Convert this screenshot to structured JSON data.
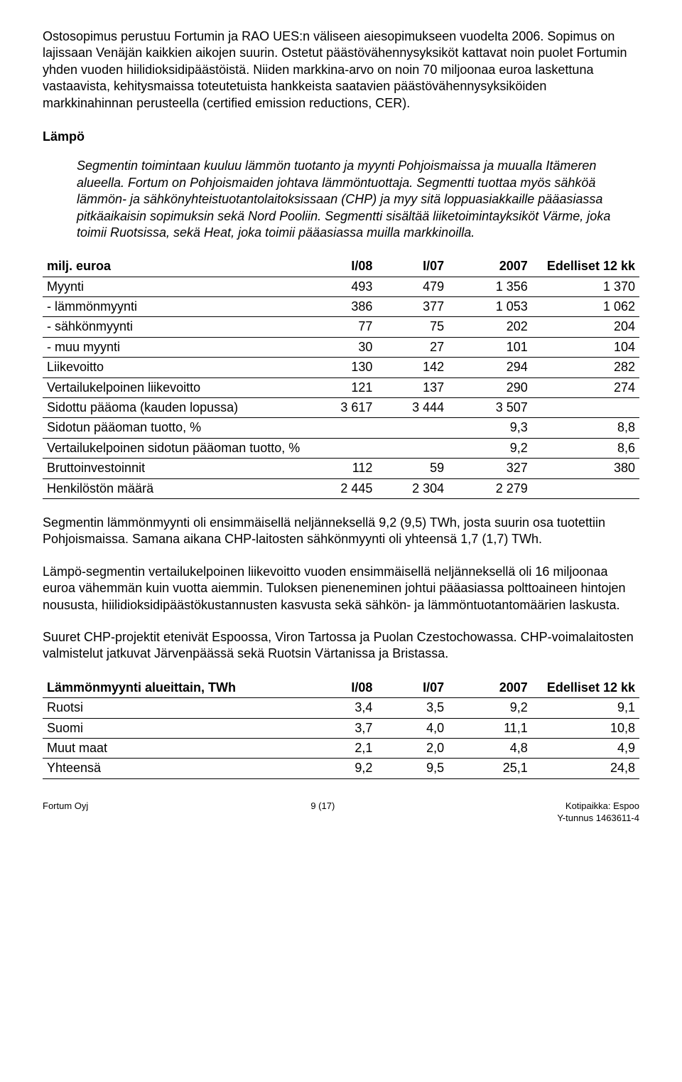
{
  "p1": "Ostosopimus perustuu Fortumin ja RAO UES:n väliseen aiesopimukseen vuodelta 2006. Sopimus on lajissaan Venäjän kaikkien aikojen suurin. Ostetut päästövähennysyksiköt kattavat noin puolet Fortumin yhden vuoden hiilidioksidipäästöistä. Niiden markkina-arvo on noin 70 miljoonaa euroa laskettuna vastaavista, kehitysmaissa toteutetuista hankkeista saatavien päästövähennysyksiköiden markkinahinnan perusteella (certified emission reductions, CER).",
  "heading_lampo": "Lämpö",
  "lampo_desc": "Segmentin toimintaan kuuluu lämmön tuotanto ja myynti Pohjoismaissa ja muualla Itämeren alueella. Fortum on Pohjoismaiden johtava lämmöntuottaja. Segmentti tuottaa myös sähköä lämmön- ja sähkönyhteistuotantolaitoksissaan (CHP) ja myy sitä loppuasiakkaille pääasiassa pitkäaikaisin sopimuksin sekä Nord Pooliin. Segmentti sisältää liiketoimintayksiköt Värme, joka toimii Ruotsissa, sekä Heat, joka toimii pääasiassa muilla markkinoilla.",
  "t1": {
    "headers": [
      "milj. euroa",
      "I/08",
      "I/07",
      "2007",
      "Edelliset 12 kk"
    ],
    "rows": [
      [
        "Myynti",
        "493",
        "479",
        "1 356",
        "1 370"
      ],
      [
        "- lämmönmyynti",
        "386",
        "377",
        "1 053",
        "1 062"
      ],
      [
        "- sähkönmyynti",
        "77",
        "75",
        "202",
        "204"
      ],
      [
        "- muu myynti",
        "30",
        "27",
        "101",
        "104"
      ],
      [
        "Liikevoitto",
        "130",
        "142",
        "294",
        "282"
      ],
      [
        "Vertailukelpoinen liikevoitto",
        "121",
        "137",
        "290",
        "274"
      ],
      [
        "Sidottu pääoma (kauden lopussa)",
        "3 617",
        "3 444",
        "3 507",
        ""
      ],
      [
        "Sidotun pääoman tuotto, %",
        "",
        "",
        "9,3",
        "8,8"
      ],
      [
        "Vertailukelpoinen sidotun pääoman tuotto, %",
        "",
        "",
        "9,2",
        "8,6"
      ],
      [
        "Bruttoinvestoinnit",
        "112",
        "59",
        "327",
        "380"
      ],
      [
        "Henkilöstön määrä",
        "2 445",
        "2 304",
        "2 279",
        ""
      ]
    ]
  },
  "p_after1": "Segmentin lämmönmyynti oli ensimmäisellä neljänneksellä 9,2 (9,5) TWh, josta suurin osa tuotettiin Pohjoismaissa. Samana aikana CHP-laitosten sähkönmyynti oli yhteensä 1,7 (1,7) TWh.",
  "p_after2": "Lämpö-segmentin vertailukelpoinen liikevoitto vuoden ensimmäisellä neljänneksellä oli 16 miljoonaa euroa vähemmän kuin vuotta aiemmin. Tuloksen pieneneminen johtui pääasiassa polttoaineen hintojen noususta, hiilidioksidipäästökustannusten kasvusta sekä sähkön- ja lämmöntuotantomäärien laskusta.",
  "p_after3": "Suuret CHP-projektit etenivät Espoossa, Viron Tartossa ja Puolan Czestochowassa. CHP-voimalaitosten valmistelut jatkuvat Järvenpäässä sekä Ruotsin Värtanissa ja Bristassa.",
  "t2": {
    "headers": [
      "Lämmönmyynti alueittain, TWh",
      "I/08",
      "I/07",
      "2007",
      "Edelliset 12 kk"
    ],
    "rows": [
      [
        "Ruotsi",
        "3,4",
        "3,5",
        "9,2",
        "9,1"
      ],
      [
        "Suomi",
        "3,7",
        "4,0",
        "11,1",
        "10,8"
      ],
      [
        "Muut maat",
        "2,1",
        "2,0",
        "4,8",
        "4,9"
      ],
      [
        "Yhteensä",
        "9,2",
        "9,5",
        "25,1",
        "24,8"
      ]
    ]
  },
  "footer": {
    "left": "Fortum Oyj",
    "center": "9 (17)",
    "right1": "Kotipaikka: Espoo",
    "right2": "Y-tunnus 1463611-4"
  },
  "col_widths_t1": [
    "44%",
    "12%",
    "12%",
    "14%",
    "18%"
  ],
  "col_widths_t2": [
    "44%",
    "12%",
    "12%",
    "14%",
    "18%"
  ]
}
